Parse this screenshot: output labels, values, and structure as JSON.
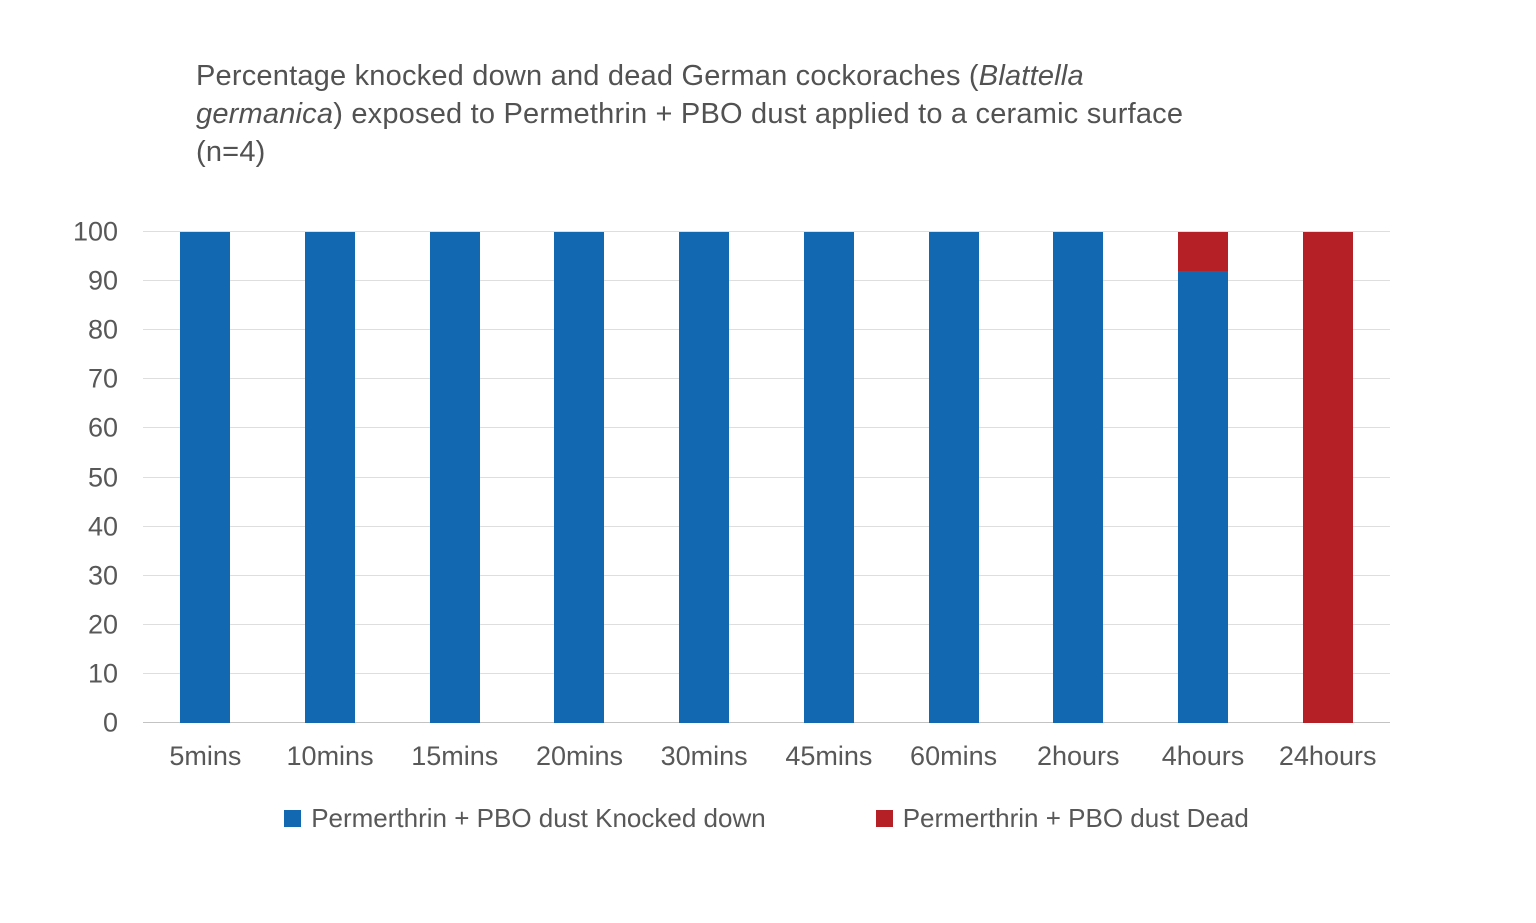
{
  "title": {
    "line1_pre": "Percentage knocked down and dead German cockoraches (",
    "line1_italic": "Blattella",
    "line2_italic": "germanica",
    "line2_post": ") exposed to Permethrin + PBO dust applied to a ceramic surface",
    "line3": "(n=4)"
  },
  "colors": {
    "knocked_down_blue": "#1268b1",
    "dead_red": "#b42025",
    "text_gray": "#585858",
    "gridline": "#dedede",
    "baseline": "#c3c3c3",
    "background": "#ffffff"
  },
  "chart_data": {
    "type": "bar",
    "stacked": true,
    "title": "Percentage knocked down and dead German cockoraches (Blattella germanica) exposed to Permethrin + PBO dust applied to a ceramic surface (n=4)",
    "categories": [
      "5mins",
      "10mins",
      "15mins",
      "20mins",
      "30mins",
      "45mins",
      "60mins",
      "2hours",
      "4hours",
      "24hours"
    ],
    "series": [
      {
        "name": "Permerthrin + PBO dust Knocked down",
        "color": "#1268b1",
        "values": [
          100,
          100,
          100,
          100,
          100,
          100,
          100,
          100,
          92,
          0
        ]
      },
      {
        "name": "Permerthrin + PBO dust Dead",
        "color": "#b42025",
        "values": [
          0,
          0,
          0,
          0,
          0,
          0,
          0,
          0,
          8,
          100
        ]
      }
    ],
    "xlabel": "",
    "ylabel": "",
    "ylim": [
      0,
      100
    ],
    "yticks": [
      0,
      10,
      20,
      30,
      40,
      50,
      60,
      70,
      80,
      90,
      100
    ],
    "grid": true,
    "legend_position": "bottom"
  }
}
